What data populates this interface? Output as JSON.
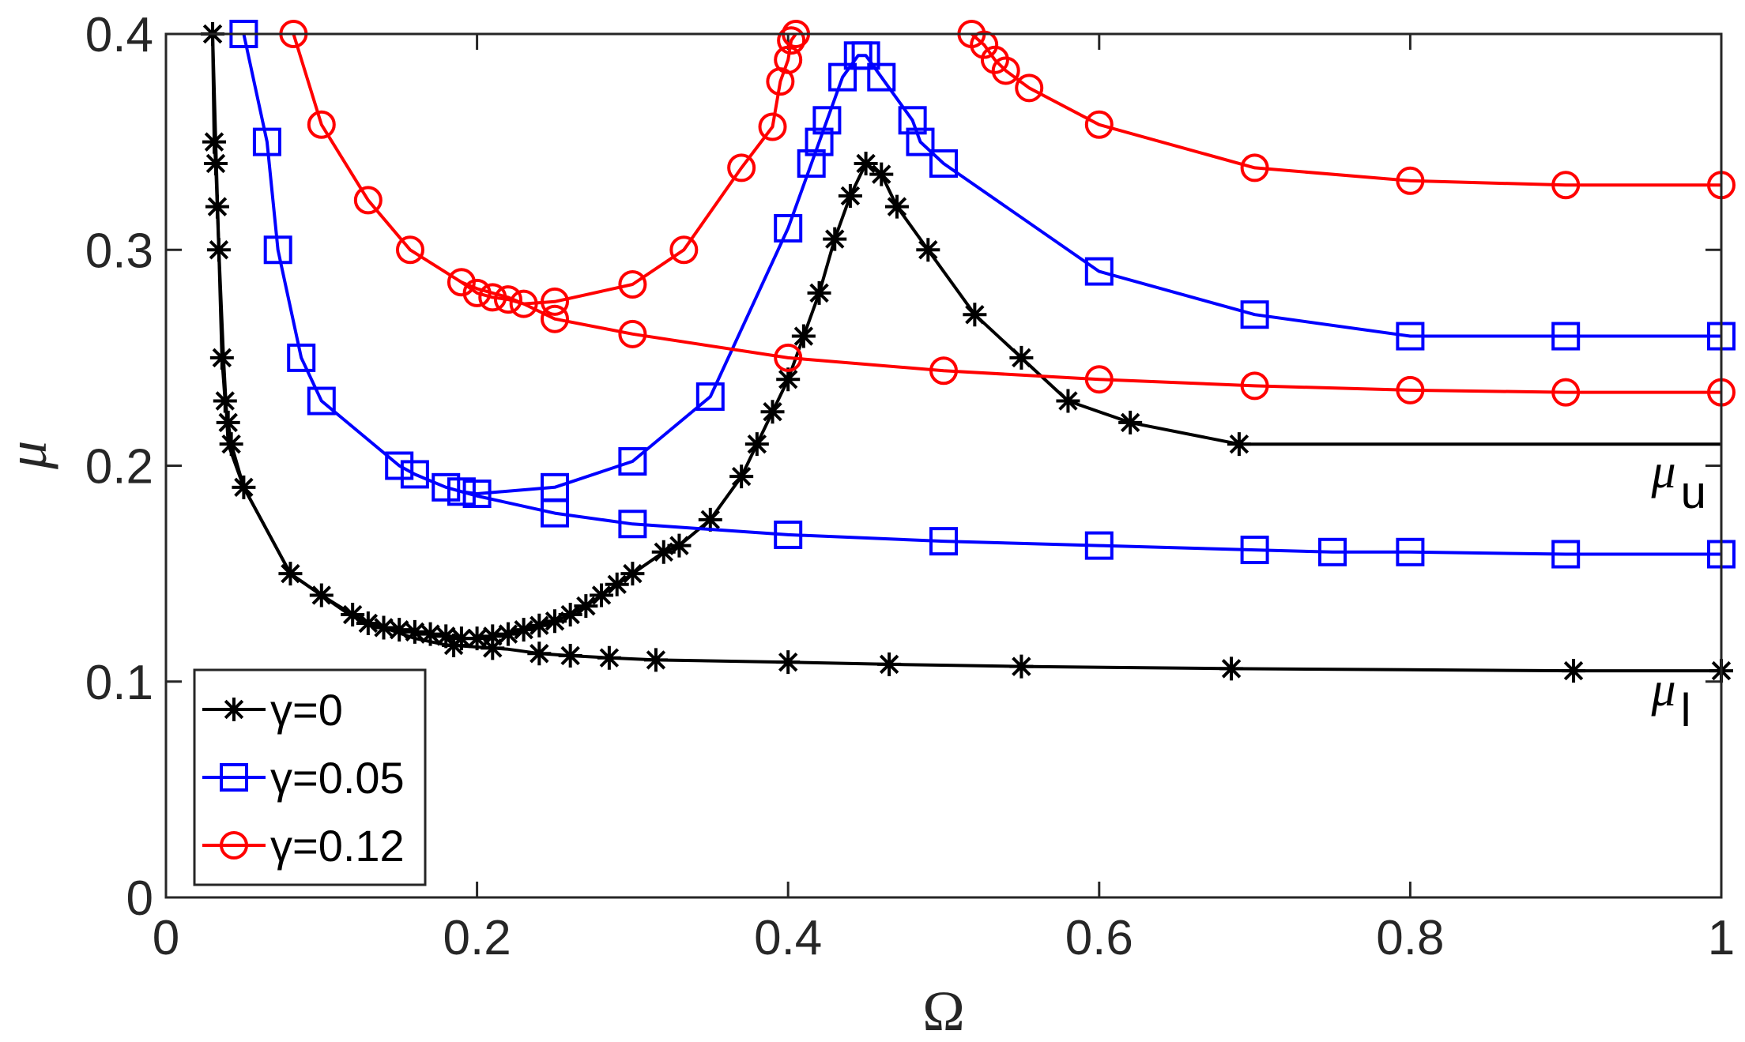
{
  "chart_data": {
    "type": "line",
    "xlabel": "Ω",
    "ylabel": "μ",
    "xlim": [
      0,
      1
    ],
    "ylim": [
      0,
      0.4
    ],
    "xticks": [
      0,
      0.2,
      0.4,
      0.6,
      0.8,
      1
    ],
    "xtick_labels": [
      "0",
      "0.2",
      "0.4",
      "0.6",
      "0.8",
      "1"
    ],
    "yticks": [
      0,
      0.1,
      0.2,
      0.3,
      0.4
    ],
    "ytick_labels": [
      "0",
      "0.1",
      "0.2",
      "0.3",
      "0.4"
    ],
    "legend_position": "bottom-left",
    "annotations": [
      {
        "base": "μ",
        "sub": "u",
        "x": 0.955,
        "y": 0.19
      },
      {
        "base": "μ",
        "sub": "l",
        "x": 0.955,
        "y": 0.089
      }
    ],
    "series": [
      {
        "name": "γ=0",
        "color": "#000000",
        "marker": "star",
        "curves": [
          {
            "x": [
              0.03,
              0.031,
              0.032,
              0.033,
              0.034,
              0.036,
              0.038,
              0.04,
              0.042,
              0.05,
              0.08,
              0.1,
              0.12,
              0.13,
              0.14,
              0.15,
              0.16,
              0.17,
              0.18,
              0.19,
              0.2,
              0.21,
              0.22,
              0.23,
              0.24,
              0.25,
              0.26,
              0.27,
              0.28,
              0.29,
              0.3,
              0.32,
              0.33,
              0.35,
              0.37,
              0.38,
              0.39,
              0.4,
              0.41,
              0.42,
              0.43,
              0.44,
              0.45,
              0.46,
              0.47,
              0.49,
              0.52,
              0.55,
              0.58,
              0.62,
              0.69,
              1.0
            ],
            "y": [
              0.4,
              0.35,
              0.34,
              0.32,
              0.3,
              0.25,
              0.23,
              0.22,
              0.21,
              0.19,
              0.15,
              0.14,
              0.131,
              0.127,
              0.125,
              0.124,
              0.123,
              0.122,
              0.121,
              0.12,
              0.12,
              0.121,
              0.122,
              0.124,
              0.126,
              0.128,
              0.131,
              0.135,
              0.14,
              0.145,
              0.15,
              0.16,
              0.163,
              0.175,
              0.195,
              0.21,
              0.225,
              0.24,
              0.26,
              0.28,
              0.305,
              0.325,
              0.34,
              0.335,
              0.32,
              0.3,
              0.27,
              0.25,
              0.23,
              0.22,
              0.21,
              0.21
            ],
            "markers": [
              0.03,
              0.031,
              0.032,
              0.033,
              0.034,
              0.036,
              0.038,
              0.04,
              0.042,
              0.05,
              0.08,
              0.1,
              0.12,
              0.13,
              0.14,
              0.15,
              0.16,
              0.17,
              0.18,
              0.19,
              0.2,
              0.21,
              0.22,
              0.23,
              0.24,
              0.25,
              0.26,
              0.27,
              0.28,
              0.29,
              0.3,
              0.32,
              0.33,
              0.35,
              0.37,
              0.38,
              0.39,
              0.4,
              0.41,
              0.42,
              0.43,
              0.44,
              0.45,
              0.46,
              0.47,
              0.49,
              0.52,
              0.55,
              0.58,
              0.62,
              0.69
            ]
          },
          {
            "x": [
              0.03,
              0.034,
              0.037,
              0.04,
              0.05,
              0.08,
              0.1,
              0.12,
              0.14,
              0.16,
              0.18,
              0.2,
              0.22,
              0.24,
              0.26,
              0.285,
              0.315,
              0.4,
              0.465,
              0.55,
              0.685,
              0.905,
              1.0
            ],
            "y": [
              0.4,
              0.3,
              0.25,
              0.21,
              0.19,
              0.15,
              0.14,
              0.13,
              0.125,
              0.12,
              0.117,
              0.116,
              0.115,
              0.113,
              0.112,
              0.111,
              0.11,
              0.109,
              0.108,
              0.107,
              0.106,
              0.105,
              0.105
            ],
            "markers": [
              0.185,
              0.21,
              0.24,
              0.26,
              0.285,
              0.315,
              0.4,
              0.465,
              0.55,
              0.685,
              0.905,
              1.0
            ]
          }
        ]
      },
      {
        "name": "γ=0.05",
        "color": "#0000ff",
        "marker": "square",
        "curves": [
          {
            "x": [
              0.05,
              0.065,
              0.072,
              0.087,
              0.1,
              0.15,
              0.16,
              0.18,
              0.19,
              0.2,
              0.25,
              0.3,
              0.35,
              0.4,
              0.415,
              0.42,
              0.425,
              0.435,
              0.445,
              0.45,
              0.46,
              0.48,
              0.485,
              0.5,
              0.6,
              0.7,
              0.8,
              0.9,
              1.0
            ],
            "y": [
              0.4,
              0.35,
              0.3,
              0.25,
              0.23,
              0.2,
              0.196,
              0.19,
              0.188,
              0.187,
              0.19,
              0.202,
              0.232,
              0.31,
              0.34,
              0.35,
              0.36,
              0.38,
              0.39,
              0.39,
              0.38,
              0.36,
              0.35,
              0.34,
              0.29,
              0.27,
              0.26,
              0.26,
              0.26
            ],
            "markers": [
              0.05,
              0.065,
              0.072,
              0.087,
              0.1,
              0.15,
              0.16,
              0.18,
              0.19,
              0.2,
              0.25,
              0.3,
              0.35,
              0.4,
              0.415,
              0.42,
              0.425,
              0.435,
              0.445,
              0.45,
              0.46,
              0.48,
              0.485,
              0.5,
              0.6,
              0.7,
              0.8,
              0.9,
              1.0
            ]
          },
          {
            "x": [
              0.19,
              0.2,
              0.25,
              0.3,
              0.4,
              0.5,
              0.6,
              0.7,
              0.75,
              0.8,
              0.9,
              1.0
            ],
            "y": [
              0.188,
              0.186,
              0.178,
              0.173,
              0.168,
              0.165,
              0.163,
              0.161,
              0.16,
              0.16,
              0.159,
              0.159
            ],
            "markers": [
              0.25,
              0.3,
              0.4,
              0.5,
              0.6,
              0.7,
              0.75,
              0.8,
              0.9,
              1.0
            ]
          }
        ]
      },
      {
        "name": "γ=0.12",
        "color": "#ff0000",
        "marker": "circle",
        "curves": [
          {
            "x": [
              0.082,
              0.1,
              0.13,
              0.157,
              0.19,
              0.2,
              0.21,
              0.22,
              0.23,
              0.25,
              0.3,
              0.333,
              0.37,
              0.39,
              0.395,
              0.4,
              0.402,
              0.405
            ],
            "y": [
              0.4,
              0.358,
              0.323,
              0.3,
              0.285,
              0.28,
              0.278,
              0.277,
              0.275,
              0.276,
              0.284,
              0.3,
              0.338,
              0.357,
              0.378,
              0.388,
              0.397,
              0.4
            ],
            "markers": [
              0.082,
              0.1,
              0.13,
              0.157,
              0.19,
              0.2,
              0.21,
              0.22,
              0.23,
              0.25,
              0.3,
              0.333,
              0.37,
              0.39,
              0.395,
              0.4,
              0.402,
              0.405
            ]
          },
          {
            "x": [
              0.518,
              0.526,
              0.533,
              0.54,
              0.555,
              0.6,
              0.7,
              0.8,
              0.9,
              1.0
            ],
            "y": [
              0.4,
              0.395,
              0.388,
              0.383,
              0.375,
              0.358,
              0.338,
              0.332,
              0.33,
              0.33
            ],
            "markers": [
              0.518,
              0.526,
              0.533,
              0.54,
              0.555,
              0.6,
              0.7,
              0.8,
              0.9,
              1.0
            ]
          },
          {
            "x": [
              0.19,
              0.2,
              0.21,
              0.22,
              0.23,
              0.25,
              0.3,
              0.4,
              0.5,
              0.6,
              0.7,
              0.8,
              0.9,
              1.0
            ],
            "y": [
              0.285,
              0.282,
              0.28,
              0.278,
              0.275,
              0.268,
              0.261,
              0.25,
              0.244,
              0.24,
              0.237,
              0.235,
              0.234,
              0.234
            ],
            "markers": [
              0.25,
              0.3,
              0.4,
              0.5,
              0.6,
              0.7,
              0.8,
              0.9,
              1.0
            ]
          }
        ]
      }
    ]
  }
}
